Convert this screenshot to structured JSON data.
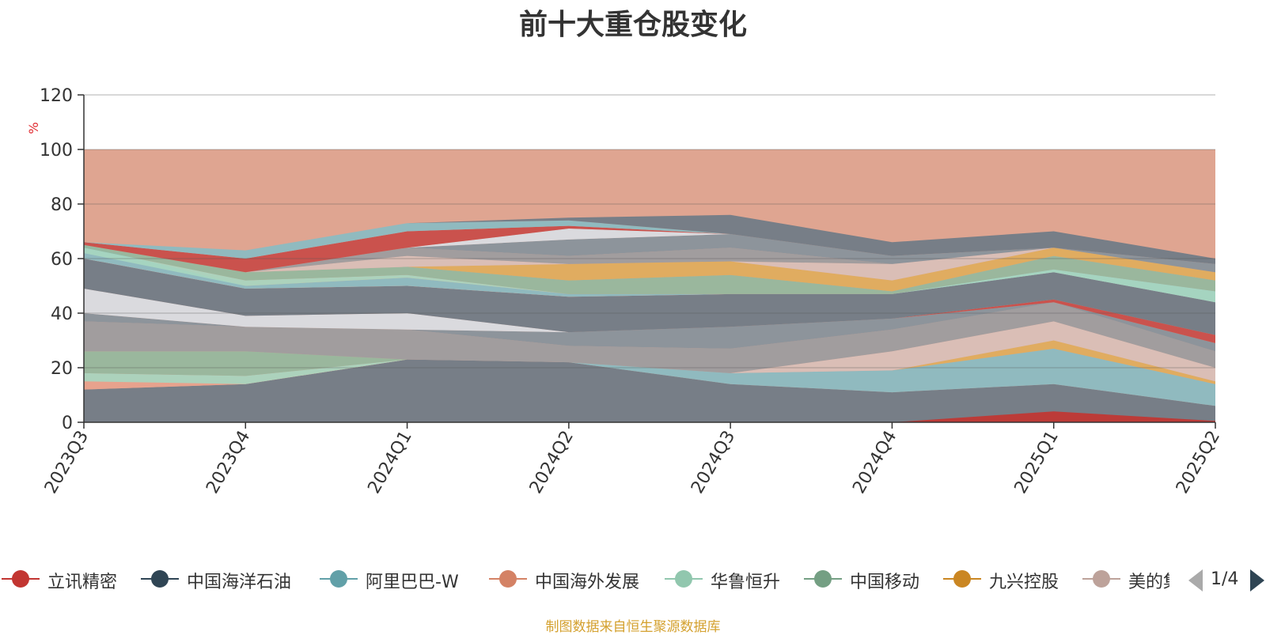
{
  "title": "前十大重仓股变化",
  "source_note": "制图数据来自恒生聚源数据库",
  "legend_pager": {
    "page": "1/4"
  },
  "chart_data": {
    "type": "area",
    "title": "前十大重仓股变化",
    "ylabel": "%",
    "ylim": [
      0,
      120
    ],
    "yticks": [
      0,
      20,
      40,
      60,
      80,
      100,
      120
    ],
    "categories": [
      "2023Q3",
      "2023Q4",
      "2024Q1",
      "2024Q2",
      "2024Q3",
      "2024Q4",
      "2025Q1",
      "2025Q2"
    ],
    "grid": true,
    "legend_position": "bottom",
    "background_band": {
      "from": 0,
      "to": 100,
      "color": "#dfa591"
    },
    "series": [
      {
        "name": "立讯精密",
        "color": "#c23531"
      },
      {
        "name": "中国海洋石油",
        "color": "#2f4554"
      },
      {
        "name": "阿里巴巴-W",
        "color": "#61a0a8"
      },
      {
        "name": "中国海外发展",
        "color": "#d48265"
      },
      {
        "name": "华鲁恒升",
        "color": "#91c7ae"
      },
      {
        "name": "中国移动",
        "color": "#749f83"
      },
      {
        "name": "九兴控股",
        "color": "#ca8622"
      },
      {
        "name": "美的集团",
        "color": "#bda29a"
      }
    ],
    "areas": [
      {
        "color": "#6e7b87",
        "upper": [
          12,
          14,
          23,
          22,
          14,
          11,
          14,
          6
        ],
        "lower": [
          0,
          0,
          0,
          0,
          0,
          0,
          0,
          0
        ]
      },
      {
        "color": "#c23531",
        "upper": [
          0,
          0,
          0,
          0,
          0,
          0,
          4,
          0.5
        ],
        "lower": [
          0,
          0,
          0,
          0,
          0,
          0,
          0,
          0
        ]
      },
      {
        "color": "#89bcc3",
        "upper": [
          12,
          14,
          23,
          22,
          18,
          19,
          27,
          14
        ],
        "lower": [
          12,
          14,
          23,
          22,
          14,
          11,
          14,
          6
        ]
      },
      {
        "color": "#e0ad5c",
        "upper": [
          12,
          14,
          23,
          22,
          18,
          19,
          30,
          15
        ],
        "lower": [
          12,
          14,
          23,
          22,
          18,
          19,
          27,
          14
        ]
      },
      {
        "color": "#d9c0ba",
        "upper": [
          12,
          14,
          23,
          22,
          18,
          26,
          37,
          20
        ],
        "lower": [
          12,
          14,
          23,
          22,
          18,
          19,
          30,
          15
        ]
      },
      {
        "color": "#e7a28d",
        "upper": [
          16,
          15,
          23,
          22,
          18,
          19,
          27,
          14
        ],
        "lower": [
          12,
          14,
          23,
          22,
          18,
          19,
          27,
          14
        ]
      },
      {
        "color": "#a7d6c0",
        "upper": [
          18,
          17,
          23,
          22,
          18,
          19,
          27,
          14
        ],
        "lower": [
          15,
          14,
          23,
          22,
          18,
          19,
          27,
          14
        ]
      },
      {
        "color": "#94b99e",
        "upper": [
          26,
          26,
          23,
          22,
          18,
          19,
          27,
          14
        ],
        "lower": [
          18,
          17,
          23,
          22,
          18,
          19,
          27,
          14
        ]
      },
      {
        "color": "#9b9c9f",
        "upper": [
          37,
          35,
          34,
          28,
          27,
          34,
          44,
          26
        ],
        "lower": [
          26,
          26,
          23,
          22,
          18,
          26,
          37,
          20
        ]
      },
      {
        "color": "#85939c",
        "upper": [
          40,
          35,
          34,
          33,
          35,
          38,
          44,
          29
        ],
        "lower": [
          37,
          35,
          34,
          28,
          27,
          34,
          44,
          26
        ]
      },
      {
        "color": "#d9dee5",
        "upper": [
          49,
          39,
          40,
          33,
          35,
          38,
          44,
          29
        ],
        "lower": [
          40,
          35,
          34,
          33,
          35,
          38,
          44,
          29
        ]
      },
      {
        "color": "#c84b48",
        "upper": [
          40,
          35,
          34,
          33,
          35,
          38,
          45,
          32
        ],
        "lower": [
          40,
          35,
          34,
          33,
          35,
          38,
          44,
          29
        ]
      },
      {
        "color": "#6e7b87",
        "upper": [
          60,
          49,
          50,
          46,
          47,
          47,
          55,
          44
        ],
        "lower": [
          49,
          39,
          40,
          33,
          35,
          38,
          45,
          32
        ]
      },
      {
        "color": "#e7a28d",
        "upper": [
          62,
          50,
          53,
          47,
          47,
          47,
          55,
          44
        ],
        "lower": [
          60,
          49,
          50,
          46,
          47,
          47,
          55,
          44
        ]
      },
      {
        "color": "#89bcc3",
        "upper": [
          65,
          50,
          53,
          47,
          47,
          47,
          56,
          48
        ],
        "lower": [
          60,
          49,
          50,
          46,
          47,
          47,
          55,
          44
        ]
      },
      {
        "color": "#a7d6c0",
        "upper": [
          64,
          52,
          54,
          47,
          47,
          47,
          56,
          48
        ],
        "lower": [
          62,
          50,
          53,
          47,
          47,
          47,
          55,
          44
        ]
      },
      {
        "color": "#94b99e",
        "upper": [
          65,
          55,
          57,
          52,
          54,
          48,
          61,
          52
        ],
        "lower": [
          64,
          52,
          54,
          47,
          47,
          47,
          56,
          48
        ]
      },
      {
        "color": "#e0ad5c",
        "upper": [
          65,
          55,
          57,
          58,
          59,
          52,
          64,
          55
        ],
        "lower": [
          65,
          55,
          57,
          52,
          54,
          48,
          61,
          52
        ]
      },
      {
        "color": "#d9c0ba",
        "upper": [
          65,
          55,
          61,
          58,
          59,
          58,
          64,
          55
        ],
        "lower": [
          65,
          55,
          57,
          58,
          59,
          52,
          64,
          55
        ]
      },
      {
        "color": "#9b9c9f",
        "upper": [
          65,
          55,
          64,
          61,
          64,
          58,
          64,
          55
        ],
        "lower": [
          65,
          55,
          61,
          58,
          59,
          58,
          64,
          55
        ]
      },
      {
        "color": "#85939c",
        "upper": [
          65,
          55,
          64,
          67,
          69,
          61,
          64,
          58
        ],
        "lower": [
          65,
          55,
          64,
          61,
          64,
          58,
          64,
          55
        ]
      },
      {
        "color": "#d9dee5",
        "upper": [
          65,
          55,
          64,
          71,
          69,
          61,
          64,
          58
        ],
        "lower": [
          65,
          55,
          64,
          67,
          69,
          61,
          64,
          58
        ]
      },
      {
        "color": "#c84b48",
        "upper": [
          66,
          60,
          70,
          72,
          69,
          61,
          64,
          58
        ],
        "lower": [
          65,
          55,
          64,
          71,
          69,
          61,
          64,
          58
        ]
      },
      {
        "color": "#89bcc3",
        "upper": [
          66,
          63,
          73,
          74,
          69,
          61,
          64,
          58
        ],
        "lower": [
          66,
          60,
          70,
          72,
          69,
          61,
          64,
          58
        ]
      },
      {
        "color": "#6e7b87",
        "upper": [
          66,
          63,
          73,
          75,
          76,
          66,
          70,
          60
        ],
        "lower": [
          66,
          63,
          73,
          74,
          69,
          61,
          64,
          58
        ]
      }
    ]
  }
}
